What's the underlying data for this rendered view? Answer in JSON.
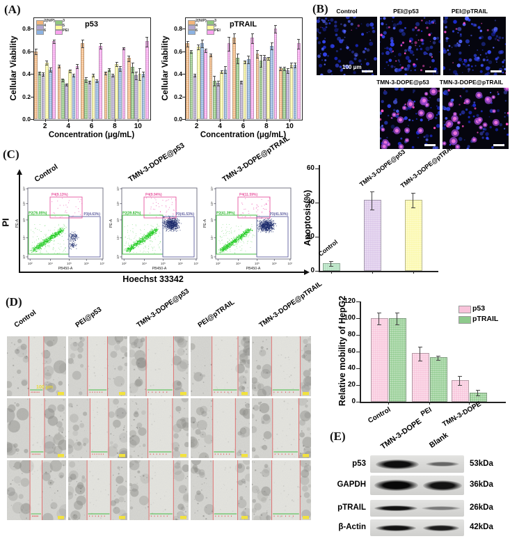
{
  "figure": {
    "panel_a_label": "(A)",
    "panel_b_label": "(B)",
    "panel_c_label": "(C)",
    "panel_d_label": "(D)",
    "panel_e_label": "(E)"
  },
  "chart_data": [
    {
      "id": "viability_p53",
      "type": "bar",
      "title": "p53",
      "xlabel": "Concentration (μg/mL)",
      "ylabel": "Cellular Viability",
      "ylim": [
        0,
        0.9
      ],
      "yticks": [
        0.0,
        0.2,
        0.4,
        0.6,
        0.8
      ],
      "categories": [
        "2",
        "4",
        "6",
        "8",
        "10"
      ],
      "legend_position": "top-left",
      "series": [
        {
          "name": "2(N/P)",
          "color": "#f3b57b",
          "values": [
            0.6,
            0.47,
            0.67,
            0.41,
            0.54
          ],
          "errors": [
            0.02,
            0.01,
            0.03,
            0.01,
            0.02
          ]
        },
        {
          "name": "3",
          "color": "#90c77e",
          "values": [
            0.41,
            0.35,
            0.35,
            0.44,
            0.46
          ],
          "errors": [
            0.01,
            0.01,
            0.02,
            0.01,
            0.04
          ]
        },
        {
          "name": "4",
          "color": "#b3a6cf",
          "values": [
            0.4,
            0.31,
            0.33,
            0.39,
            0.39
          ],
          "errors": [
            0.01,
            0.005,
            0.01,
            0.01,
            0.03
          ]
        },
        {
          "name": "5",
          "color": "#fdfb9e",
          "values": [
            0.5,
            0.43,
            0.39,
            0.49,
            0.4
          ],
          "errors": [
            0.015,
            0.01,
            0.01,
            0.015,
            0.05
          ]
        },
        {
          "name": "6",
          "color": "#8cb2e2",
          "values": [
            0.44,
            0.39,
            0.34,
            0.45,
            0.4
          ],
          "errors": [
            0.015,
            0.01,
            0.01,
            0.02,
            0.02
          ]
        },
        {
          "name": "PEI",
          "color": "#f9a3ef",
          "values": [
            0.69,
            0.47,
            0.65,
            0.63,
            0.69
          ],
          "errors": [
            0.01,
            0.015,
            0.02,
            0.005,
            0.04
          ]
        }
      ]
    },
    {
      "id": "viability_ptrail",
      "type": "bar",
      "title": "pTRAIL",
      "xlabel": "Concentration (μg/mL)",
      "ylabel": "Cellular Viability",
      "ylim": [
        0,
        0.9
      ],
      "yticks": [
        0.0,
        0.2,
        0.4,
        0.6,
        0.8
      ],
      "categories": [
        "2",
        "4",
        "6",
        "8",
        "10"
      ],
      "legend_position": "top-left",
      "series": [
        {
          "name": "2(N/P)",
          "color": "#f3b57b",
          "values": [
            0.67,
            0.57,
            0.72,
            0.58,
            0.45
          ],
          "errors": [
            0.02,
            0.01,
            0.04,
            0.03,
            0.01
          ]
        },
        {
          "name": "3",
          "color": "#90c77e",
          "values": [
            0.6,
            0.34,
            0.54,
            0.52,
            0.45
          ],
          "errors": [
            0.01,
            0.04,
            0.04,
            0.05,
            0.01
          ]
        },
        {
          "name": "4",
          "color": "#b3a6cf",
          "values": [
            0.39,
            0.32,
            0.33,
            0.55,
            0.43
          ],
          "errors": [
            0.01,
            0.02,
            0.01,
            0.02,
            0.02
          ]
        },
        {
          "name": "5",
          "color": "#fdfb9e",
          "values": [
            0.64,
            0.42,
            0.51,
            0.54,
            0.48
          ],
          "errors": [
            0.02,
            0.01,
            0.01,
            0.01,
            0.02
          ]
        },
        {
          "name": "6",
          "color": "#8cb2e2",
          "values": [
            0.67,
            0.44,
            0.53,
            0.65,
            0.48
          ],
          "errors": [
            0.03,
            0.03,
            0.03,
            0.03,
            0.02
          ]
        },
        {
          "name": "PEI",
          "color": "#f9a3ef",
          "values": [
            0.61,
            0.67,
            0.72,
            0.8,
            0.67
          ],
          "errors": [
            0.01,
            0.06,
            0.04,
            0.03,
            0.04
          ]
        }
      ]
    },
    {
      "id": "apoptosis",
      "type": "bar",
      "title": "",
      "xlabel": "",
      "ylabel": "Apoptosis(%)",
      "ylim": [
        0,
        62
      ],
      "yticks": [
        0,
        20,
        40,
        60
      ],
      "categories": [
        "Control",
        "TMN-3-DOPE@p53",
        "TMN-3-DOPE@pTRAIL"
      ],
      "values": [
        4.5,
        41.5,
        41.5
      ],
      "errors": [
        1.2,
        5,
        4
      ],
      "colors": [
        "#a9ddb8",
        "#d9c3e8",
        "#fbf8a5"
      ]
    },
    {
      "id": "mobility",
      "type": "bar",
      "title": "",
      "xlabel": "",
      "ylabel": "Relative mobility of HepG2",
      "ylim": [
        0,
        120
      ],
      "yticks": [
        0,
        20,
        40,
        60,
        80,
        100,
        120
      ],
      "categories": [
        "Control",
        "PEI",
        "TMN-3-DOPE"
      ],
      "legend_position": "top-right",
      "series": [
        {
          "name": "p53",
          "color": "#f8c3da",
          "values": [
            100,
            58,
            26
          ],
          "errors": [
            7,
            8,
            5
          ]
        },
        {
          "name": "pTRAIL",
          "color": "#8eca8c",
          "values": [
            100,
            53,
            11
          ],
          "errors": [
            7,
            2,
            3
          ]
        }
      ]
    }
  ],
  "flow": {
    "ylabel_outer": "PI",
    "xlabel_outer": "Hoechst 33342",
    "xaxis_name": "PB450-A",
    "yaxis_name": "PE-A",
    "xticks": [
      "10²",
      "10⁴",
      "10⁵",
      "10⁶",
      "10⁷"
    ],
    "yticks": [
      "10²",
      "10⁴",
      "10⁵",
      "10⁶",
      "10⁷"
    ],
    "plots": [
      {
        "title": "Control",
        "p4": "P4(9.13%)",
        "p2": "P2(76.05%)",
        "p3": "P3(4.63%)"
      },
      {
        "title": "TMN-3-DOPE@p53",
        "p4": "P4(9.94%)",
        "p2": "P2(39.82%)",
        "p3": "P3(41.53%)"
      },
      {
        "title": "TMN-3-DOPE@pTRAIL",
        "p4": "P4(11.59%)",
        "p2": "P2(41.39%)",
        "p3": "P3(41.50%)"
      }
    ]
  },
  "fluorescence": {
    "row1": [
      {
        "label": "Control",
        "scale": "100 μm"
      },
      {
        "label": "PEI@p53"
      },
      {
        "label": "PEI@pTRAIL"
      }
    ],
    "row2": [
      {
        "label": "TMN-3-DOPE@p53"
      },
      {
        "label": "TMN-3-DOPE@pTRAIL"
      }
    ]
  },
  "wound": {
    "columns": [
      "Control",
      "PEI@p53",
      "TMN-3-DOPE@p53",
      "PEI@pTRAIL",
      "TMN-3-DOPE@pTRAIL"
    ],
    "rows": 3,
    "scale": "100 μm"
  },
  "blot": {
    "lanes": [
      "TMN-3-DOPE",
      "Blank"
    ],
    "rows": [
      {
        "label": "p53",
        "kda": "53kDa"
      },
      {
        "label": "GAPDH",
        "kda": "36kDa"
      },
      {
        "label": "pTRAIL",
        "kda": "26kDa"
      },
      {
        "label": "β-Actin",
        "kda": "42kDa"
      }
    ]
  }
}
